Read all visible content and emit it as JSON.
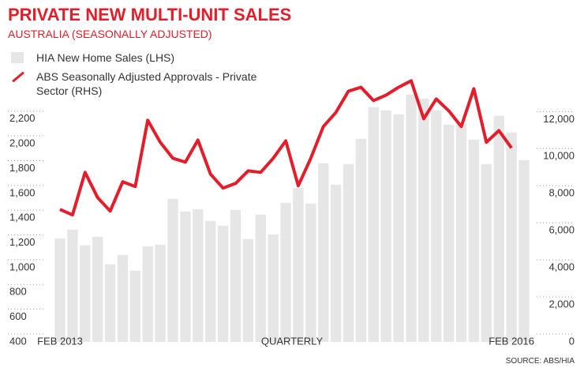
{
  "chart_data": {
    "type": "bar-line",
    "title": "PRIVATE NEW MULTI-UNIT SALES",
    "subtitle": "AUSTRALIA (SEASONALLY ADJUSTED)",
    "x_label": "QUARTERLY",
    "source": "SOURCE: ABS/HIA",
    "categories": [
      "FEB 2013",
      null,
      null,
      null,
      null,
      null,
      null,
      null,
      null,
      null,
      null,
      null,
      null,
      null,
      null,
      null,
      null,
      null,
      null,
      null,
      null,
      null,
      null,
      null,
      null,
      null,
      null,
      null,
      null,
      null,
      null,
      null,
      null,
      null,
      null,
      null,
      "FEB 2016",
      null
    ],
    "series": [
      {
        "name": "HIA New Home Sales (LHS)",
        "color": "#e6e6e6",
        "type": "bar",
        "values": [
          1236,
          1306,
          1179,
          1249,
          1026,
          1102,
          975,
          1172,
          1185,
          1555,
          1453,
          1472,
          1377,
          1338,
          1466,
          1230,
          1428,
          1268,
          1523,
          1645,
          1517,
          1843,
          1670,
          1836,
          2040,
          2296,
          2270,
          2238,
          2398,
          2366,
          2270,
          2155,
          2162,
          2034,
          1836,
          2226,
          2091,
          1868
        ]
      },
      {
        "name": "ABS Seasonally Adjusted Approvals - Private Sector (RHS)",
        "color": "#e31e2a",
        "type": "line",
        "axis": "y2",
        "values": [
          7150,
          6850,
          9150,
          7790,
          7060,
          8640,
          8380,
          11960,
          10770,
          9910,
          9700,
          10890,
          9060,
          8300,
          8550,
          9230,
          9150,
          9910,
          10850,
          8430,
          9910,
          11620,
          12380,
          13530,
          13740,
          13020,
          13320,
          13740,
          14090,
          12040,
          13110,
          12470,
          11620,
          13660,
          10770,
          11400,
          10470,
          null
        ]
      }
    ],
    "ylim": [
      400,
      2600
    ],
    "yticks": [
      400,
      600,
      800,
      {
        "value": 1000,
        "label": "1,000"
      },
      {
        "value": 1200,
        "label": "1,200"
      },
      {
        "value": 1400,
        "label": "1,400"
      },
      {
        "value": 1600,
        "label": "1,600"
      },
      {
        "value": 1800,
        "label": "1,800"
      },
      {
        "value": 2000,
        "label": "2,000"
      },
      {
        "value": 2200,
        "label": "2,200"
      }
    ],
    "y2lim": [
      0,
      14700
    ],
    "y2ticks": [
      0,
      {
        "value": 2000,
        "label": "2,000"
      },
      {
        "value": 4000,
        "label": "4,000"
      },
      {
        "value": 6000,
        "label": "6,000"
      },
      {
        "value": 8000,
        "label": "8,000"
      },
      {
        "value": 10000,
        "label": "10,000"
      },
      {
        "value": 12000,
        "label": "12,000"
      }
    ],
    "grid": true
  }
}
